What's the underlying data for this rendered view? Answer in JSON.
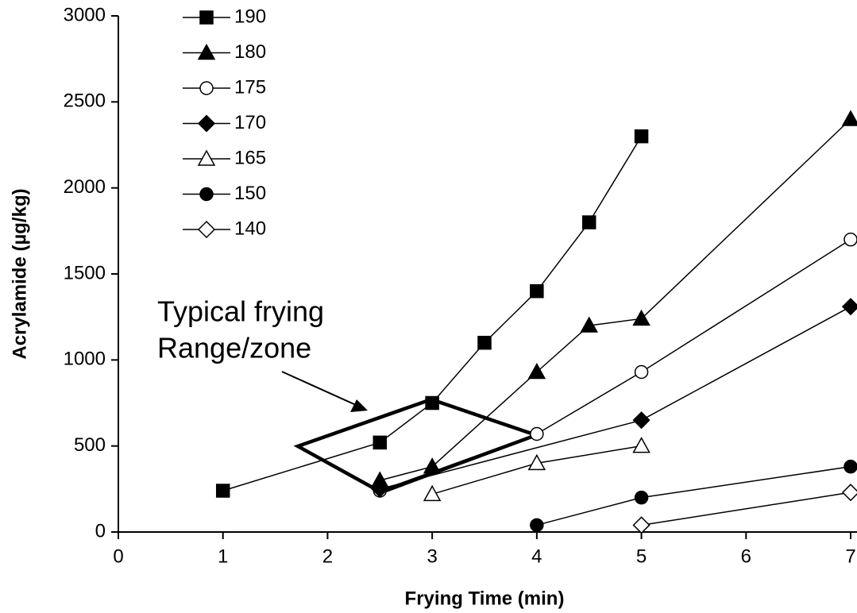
{
  "chart_data": {
    "type": "line",
    "xlabel": "Frying Time (min)",
    "ylabel": "Acrylamide (µg/kg)",
    "annotation": [
      "Typical frying",
      "Range/zone"
    ],
    "xlim": [
      0,
      7
    ],
    "xticks": [
      0,
      1,
      2,
      3,
      4,
      5,
      6,
      7
    ],
    "ylim": [
      0,
      3000
    ],
    "yticks": [
      0,
      500,
      1000,
      1500,
      2000,
      2500,
      3000
    ],
    "legend": "upper left",
    "series": [
      {
        "name": "190",
        "color": "#000000",
        "marker": "square",
        "filled": true,
        "x": [
          1,
          2.5,
          3,
          3.5,
          4,
          4.5,
          5
        ],
        "values": [
          240,
          520,
          750,
          1100,
          1400,
          1800,
          2300
        ]
      },
      {
        "name": "180",
        "color": "#000000",
        "marker": "triangle",
        "filled": true,
        "x": [
          2.5,
          3,
          4,
          4.5,
          5,
          7
        ],
        "values": [
          300,
          380,
          930,
          1200,
          1240,
          2400
        ]
      },
      {
        "name": "175",
        "color": "#000000",
        "marker": "circle",
        "filled": false,
        "x": [
          2.5,
          4,
          5,
          7
        ],
        "values": [
          240,
          570,
          930,
          1700
        ]
      },
      {
        "name": "170",
        "color": "#000000",
        "marker": "diamond",
        "filled": true,
        "x": [
          2.5,
          5,
          7
        ],
        "values": [
          250,
          650,
          1310
        ]
      },
      {
        "name": "165",
        "color": "#000000",
        "marker": "triangle",
        "filled": false,
        "x": [
          3,
          4,
          5
        ],
        "values": [
          220,
          400,
          500
        ]
      },
      {
        "name": "150",
        "color": "#000000",
        "marker": "circle",
        "filled": true,
        "x": [
          4,
          5,
          7
        ],
        "values": [
          40,
          200,
          380
        ]
      },
      {
        "name": "140",
        "color": "#000000",
        "marker": "diamond",
        "filled": false,
        "x": [
          5,
          7
        ],
        "values": [
          40,
          230
        ]
      }
    ]
  }
}
